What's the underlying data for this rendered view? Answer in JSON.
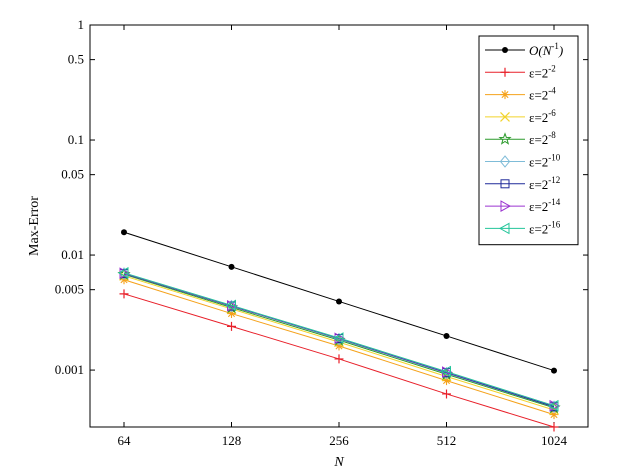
{
  "chart_data": {
    "type": "line",
    "xlabel": "N",
    "ylabel": "Max-Error",
    "x_scale": "log2",
    "y_scale": "log10",
    "x": [
      64,
      128,
      256,
      512,
      1024
    ],
    "x_tick_labels": [
      "64",
      "128",
      "256",
      "512",
      "1024"
    ],
    "ylim": [
      0.00032,
      1
    ],
    "y_ticks": [
      0.001,
      0.005,
      0.01,
      0.05,
      0.1,
      0.5,
      1
    ],
    "y_tick_labels": [
      "0.001",
      "0.005",
      "0.01",
      "0.05",
      "0.1",
      "0.5",
      "1"
    ],
    "legend_position": "top-right",
    "grid": false,
    "series": [
      {
        "name": "O(N^-1)",
        "legend_main": "O(N",
        "legend_sup": "-1",
        "legend_tail": ")",
        "color": "#000000",
        "marker": "dot",
        "values": [
          0.0158,
          0.0079,
          0.00395,
          0.00198,
          0.00099
        ]
      },
      {
        "name": "ε=2^-2",
        "legend_main": "ε=2",
        "legend_sup": "-2",
        "legend_tail": "",
        "color": "#e8202a",
        "marker": "plus",
        "values": [
          0.0046,
          0.0024,
          0.00125,
          0.00062,
          0.00032
        ]
      },
      {
        "name": "ε=2^-4",
        "legend_main": "ε=2",
        "legend_sup": "-4",
        "legend_tail": "",
        "color": "#f5a21b",
        "marker": "asterisk",
        "values": [
          0.0061,
          0.0031,
          0.00162,
          0.00081,
          0.00041
        ]
      },
      {
        "name": "ε=2^-6",
        "legend_main": "ε=2",
        "legend_sup": "-6",
        "legend_tail": "",
        "color": "#f2d32a",
        "marker": "x",
        "values": [
          0.0066,
          0.0034,
          0.00175,
          0.00088,
          0.00045
        ]
      },
      {
        "name": "ε=2^-8",
        "legend_main": "ε=2",
        "legend_sup": "-8",
        "legend_tail": "",
        "color": "#2b9a2b",
        "marker": "star",
        "values": [
          0.0068,
          0.0035,
          0.00182,
          0.00092,
          0.00047
        ]
      },
      {
        "name": "ε=2^-10",
        "legend_main": "ε=2",
        "legend_sup": "-10",
        "legend_tail": "",
        "color": "#7fbcd8",
        "marker": "diamond",
        "values": [
          0.0069,
          0.0036,
          0.00186,
          0.00094,
          0.00048
        ]
      },
      {
        "name": "ε=2^-12",
        "legend_main": "ε=2",
        "legend_sup": "-12",
        "legend_tail": "",
        "color": "#1f2a9a",
        "marker": "square",
        "values": [
          0.0069,
          0.0036,
          0.00188,
          0.00095,
          0.00048
        ]
      },
      {
        "name": "ε=2^-14",
        "legend_main": "ε=2",
        "legend_sup": "-14",
        "legend_tail": "",
        "color": "#9b35d0",
        "marker": "triangle-right",
        "values": [
          0.00695,
          0.00362,
          0.00189,
          0.00096,
          0.00049
        ]
      },
      {
        "name": "ε=2^-16",
        "legend_main": "ε=2",
        "legend_sup": "-16",
        "legend_tail": "",
        "color": "#22c49a",
        "marker": "triangle-left",
        "values": [
          0.007,
          0.00365,
          0.0019,
          0.00097,
          0.00049
        ]
      }
    ]
  }
}
